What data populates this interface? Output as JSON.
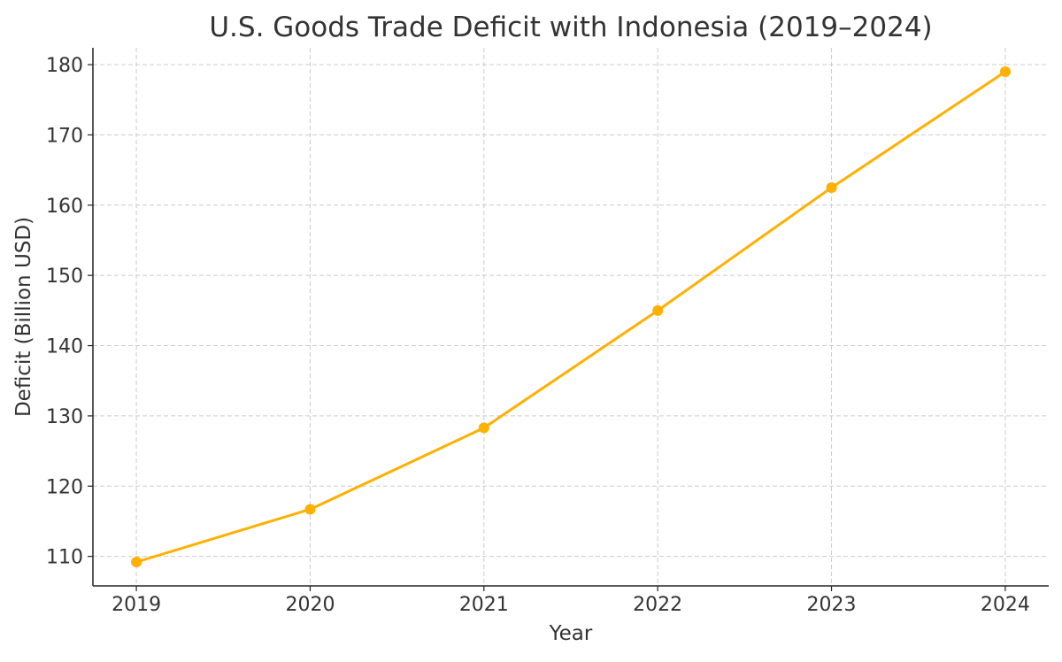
{
  "chart_data": {
    "type": "line",
    "title": "U.S. Goods Trade Deficit with Indonesia (2019–2024)",
    "xlabel": "Year",
    "ylabel": "Deficit (Billion USD)",
    "x": [
      2019,
      2020,
      2021,
      2022,
      2023,
      2024
    ],
    "x_tick_labels": [
      "2019",
      "2020",
      "2021",
      "2022",
      "2023",
      "2024"
    ],
    "y_ticks": [
      110,
      120,
      130,
      140,
      150,
      160,
      170,
      180
    ],
    "y_tick_labels": [
      "110",
      "120",
      "130",
      "140",
      "150",
      "160",
      "170",
      "180"
    ],
    "series": [
      {
        "values": [
          109.2,
          116.7,
          128.3,
          145.0,
          162.5,
          179.0
        ],
        "color": "#FFB000",
        "marker": "circle"
      }
    ],
    "xlim": [
      2018.75,
      2024.25
    ],
    "ylim": [
      105.8,
      182.4
    ],
    "grid": true,
    "grid_style": "dashed"
  }
}
